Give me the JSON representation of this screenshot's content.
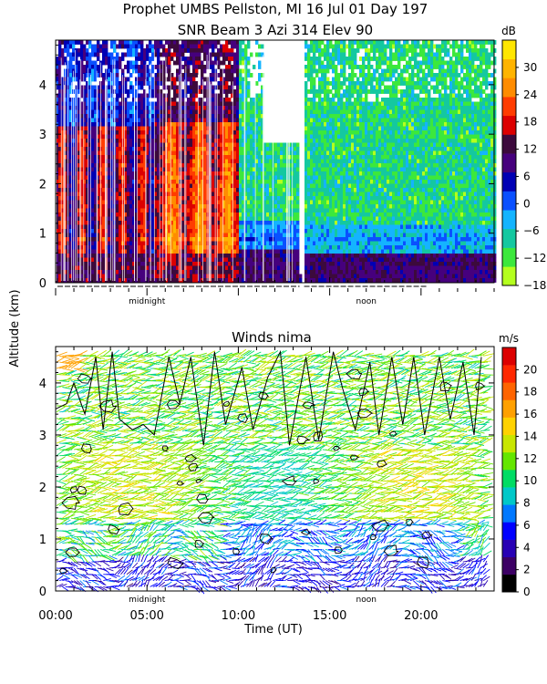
{
  "title_line1": "Prophet  UMBS Pellston, MI  16 Jul 01 Day 197",
  "title_line2": "SNR Beam 3 Azi 314 Elev 90",
  "y_axis_label": "Altitude (km)",
  "x_axis_label": "Time (UT)",
  "chart_data": [
    {
      "type": "heatmap",
      "title": "SNR Beam 3 Azi 314 Elev 90",
      "ylabel": "Altitude (km)",
      "y_ticks": [
        "0",
        "1",
        "2",
        "3",
        "4"
      ],
      "ylim": [
        0,
        4.9
      ],
      "xlim": [
        0,
        24
      ],
      "x_markers": [
        {
          "hour": 5,
          "label": "midnight"
        },
        {
          "hour": 17,
          "label": "noon"
        }
      ],
      "colorbar": {
        "unit": "dB",
        "range": [
          -18,
          36
        ],
        "ticks": [
          "30",
          "24",
          "18",
          "12",
          "6",
          "0",
          "−6",
          "−12",
          "−18"
        ],
        "colors": [
          "#b4ff1e",
          "#3ce83c",
          "#14c8a0",
          "#14b4ff",
          "#0a50ff",
          "#0000b4",
          "#46007d",
          "#3c0a3c",
          "#dc0000",
          "#ff3c00",
          "#ff8c00",
          "#ffb400",
          "#ffe600"
        ]
      }
    },
    {
      "type": "scatter",
      "title": "Winds nima",
      "xlabel": "Time (UT)",
      "ylabel": "Altitude (km)",
      "x_ticks": [
        "00:00",
        "05:00",
        "10:00",
        "15:00",
        "20:00"
      ],
      "y_ticks": [
        "0",
        "1",
        "2",
        "3",
        "4"
      ],
      "xlim": [
        0,
        24
      ],
      "ylim": [
        0,
        4.7
      ],
      "x_markers": [
        {
          "hour": 5,
          "label": "midnight"
        },
        {
          "hour": 17,
          "label": "noon"
        }
      ],
      "colorbar": {
        "unit": "m/s",
        "range": [
          0,
          22
        ],
        "ticks": [
          "20",
          "18",
          "16",
          "14",
          "12",
          "10",
          "8",
          "6",
          "4",
          "2",
          "0"
        ],
        "colors": [
          "#000000",
          "#3c0064",
          "#2800b4",
          "#0000ff",
          "#0078ff",
          "#00c8c8",
          "#00dc64",
          "#64e600",
          "#c8e600",
          "#ffd200",
          "#ffa000",
          "#ff6400",
          "#ff2800",
          "#dc0000"
        ]
      }
    }
  ]
}
